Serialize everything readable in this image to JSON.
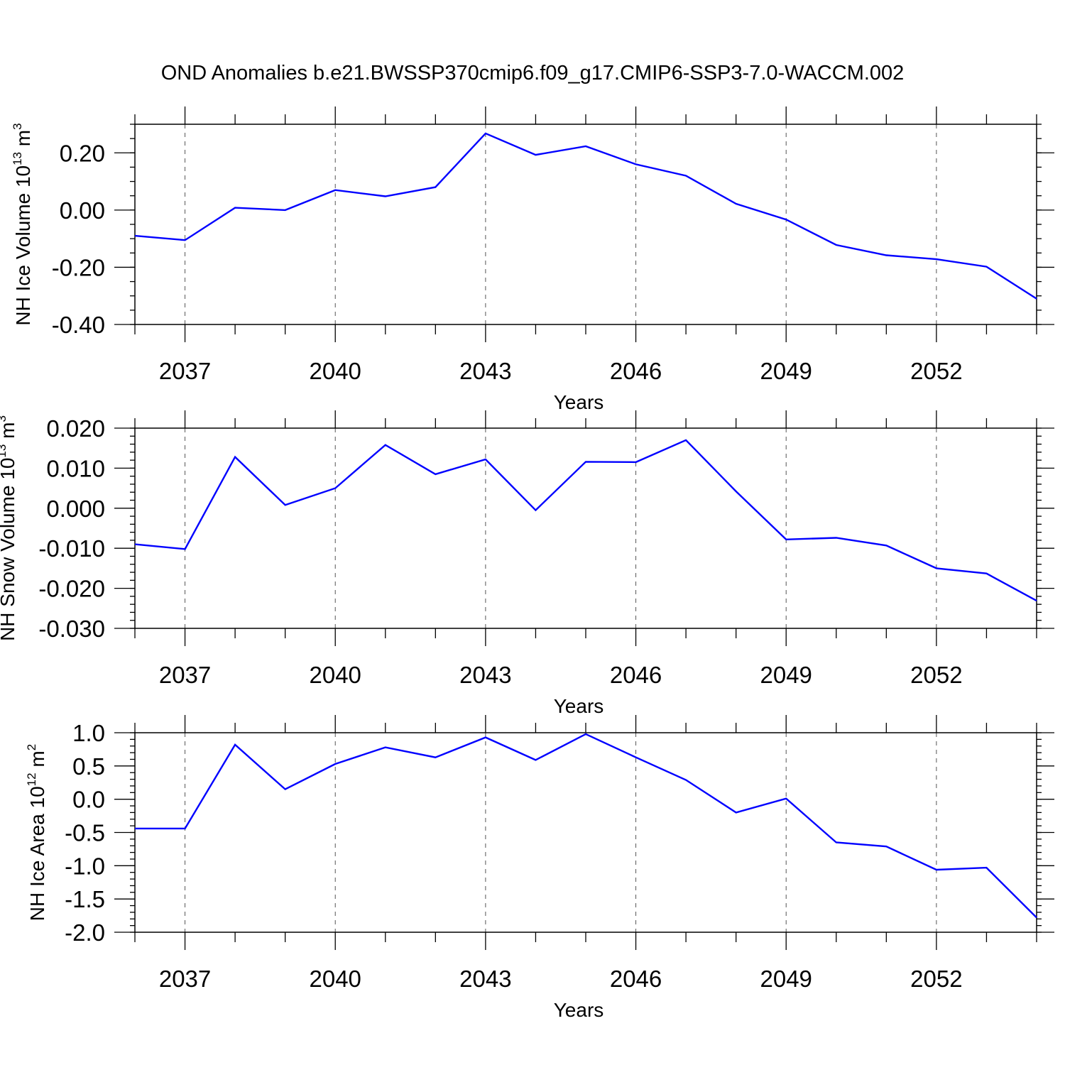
{
  "figure": {
    "title": "OND Anomalies b.e21.BWSSP370cmip6.f09_g17.CMIP6-SSP3-7.0-WACCM.002",
    "line_color": "#0000ff"
  },
  "chart_data": [
    {
      "type": "line",
      "title": "",
      "xlabel": "Years",
      "ylabel": "NH Ice Volume 10",
      "ylabel_exp": "13",
      "ylabel_unit": "m",
      "ylabel_unit_exp": "3",
      "xlim": [
        2036,
        2054
      ],
      "ylim": [
        -0.4,
        0.3
      ],
      "x_major_ticks": [
        2037,
        2040,
        2043,
        2046,
        2049,
        2052
      ],
      "x_tick_labels": [
        "2037",
        "2040",
        "2043",
        "2046",
        "2049",
        "2052"
      ],
      "y_major_ticks": [
        -0.4,
        -0.2,
        0.0,
        0.2
      ],
      "y_tick_labels": [
        "-0.40",
        "-0.20",
        "0.00",
        "0.20"
      ],
      "y_minor_step": 0.05,
      "grid": "vertical dashed at major x ticks",
      "series": [
        {
          "x": [
            2036,
            2037,
            2038,
            2039,
            2040,
            2041,
            2042,
            2043,
            2044,
            2045,
            2046,
            2047,
            2048,
            2049,
            2050,
            2051,
            2052,
            2053,
            2054
          ],
          "values": [
            -0.09,
            -0.105,
            0.008,
            0.0,
            0.07,
            0.048,
            0.08,
            0.268,
            0.193,
            0.223,
            0.16,
            0.12,
            0.022,
            -0.033,
            -0.122,
            -0.158,
            -0.172,
            -0.198,
            -0.31
          ]
        }
      ]
    },
    {
      "type": "line",
      "title": "",
      "xlabel": "Years",
      "ylabel": "NH Snow Volume 10",
      "ylabel_exp": "13",
      "ylabel_unit": "m",
      "ylabel_unit_exp": "3",
      "xlim": [
        2036,
        2054
      ],
      "ylim": [
        -0.03,
        0.02
      ],
      "x_major_ticks": [
        2037,
        2040,
        2043,
        2046,
        2049,
        2052
      ],
      "x_tick_labels": [
        "2037",
        "2040",
        "2043",
        "2046",
        "2049",
        "2052"
      ],
      "y_major_ticks": [
        -0.03,
        -0.02,
        -0.01,
        0.0,
        0.01,
        0.02
      ],
      "y_tick_labels": [
        "-0.030",
        "-0.020",
        "-0.010",
        "0.000",
        "0.010",
        "0.020"
      ],
      "y_minor_step": 0.002,
      "grid": "vertical dashed at major x ticks",
      "series": [
        {
          "x": [
            2036,
            2037,
            2038,
            2039,
            2040,
            2041,
            2042,
            2043,
            2044,
            2045,
            2046,
            2047,
            2048,
            2049,
            2050,
            2051,
            2052,
            2053,
            2054
          ],
          "values": [
            -0.009,
            -0.0102,
            0.0128,
            0.0008,
            0.005,
            0.0158,
            0.0085,
            0.0122,
            -0.0005,
            0.0116,
            0.0115,
            0.017,
            0.0042,
            -0.0078,
            -0.0074,
            -0.0093,
            -0.015,
            -0.0163,
            -0.0231
          ]
        }
      ]
    },
    {
      "type": "line",
      "title": "",
      "xlabel": "Years",
      "ylabel": "NH Ice Area 10",
      "ylabel_exp": "12",
      "ylabel_unit": "m",
      "ylabel_unit_exp": "2",
      "xlim": [
        2036,
        2054
      ],
      "ylim": [
        -2.0,
        1.0
      ],
      "x_major_ticks": [
        2037,
        2040,
        2043,
        2046,
        2049,
        2052
      ],
      "x_tick_labels": [
        "2037",
        "2040",
        "2043",
        "2046",
        "2049",
        "2052"
      ],
      "y_major_ticks": [
        -2.0,
        -1.5,
        -1.0,
        -0.5,
        0.0,
        0.5,
        1.0
      ],
      "y_tick_labels": [
        "-2.0",
        "-1.5",
        "-1.0",
        "-0.5",
        "0.0",
        "0.5",
        "1.0"
      ],
      "y_minor_step": 0.1,
      "grid": "vertical dashed at major x ticks",
      "series": [
        {
          "x": [
            2036,
            2037,
            2038,
            2039,
            2040,
            2041,
            2042,
            2043,
            2044,
            2045,
            2046,
            2047,
            2048,
            2049,
            2050,
            2051,
            2052,
            2053,
            2054
          ],
          "values": [
            -0.44,
            -0.44,
            0.82,
            0.15,
            0.53,
            0.78,
            0.63,
            0.93,
            0.59,
            0.98,
            0.63,
            0.29,
            -0.2,
            0.01,
            -0.65,
            -0.71,
            -1.06,
            -1.03,
            -1.78
          ]
        }
      ]
    }
  ]
}
